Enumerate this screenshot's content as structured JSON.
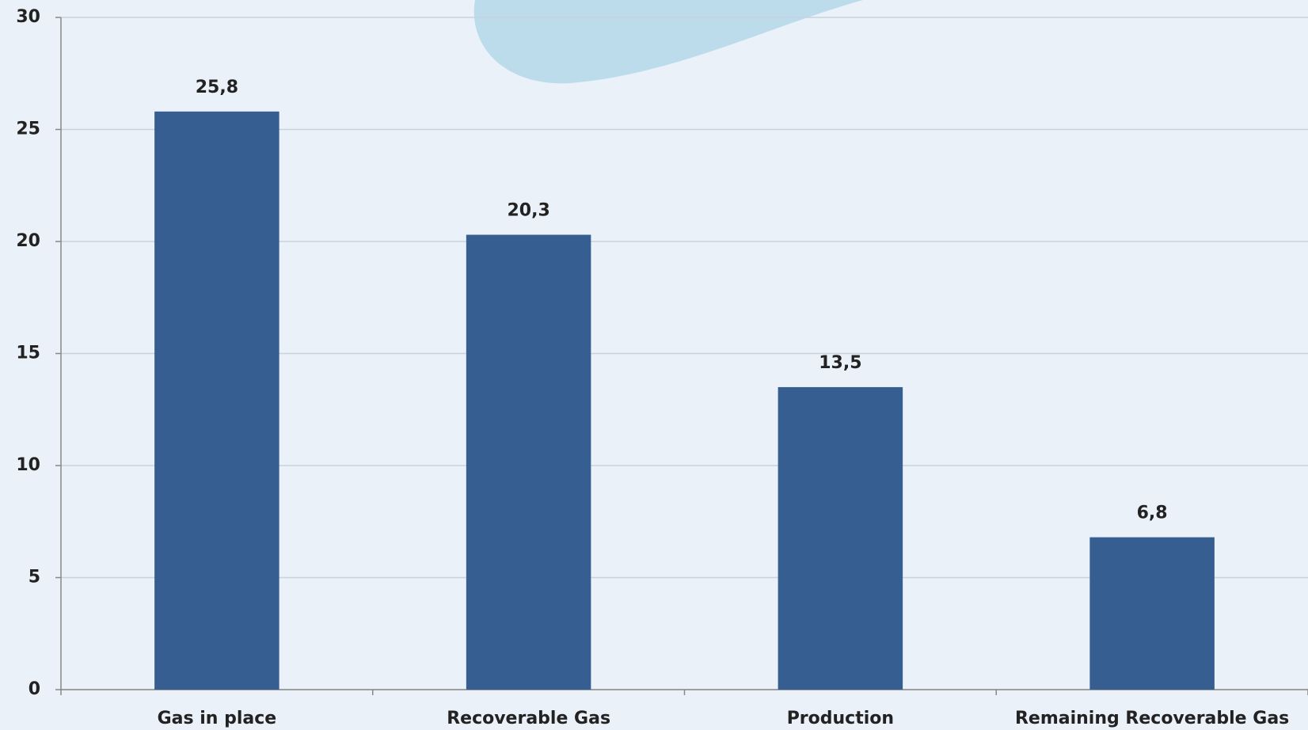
{
  "chart_data": {
    "type": "bar",
    "categories": [
      "Gas in place",
      "Recoverable Gas",
      "Production",
      "Remaining Recoverable Gas"
    ],
    "values": [
      25.8,
      20.3,
      13.5,
      6.8
    ],
    "value_labels": [
      "25,8",
      "20,3",
      "13,5",
      "6,8"
    ],
    "color": "#365e91",
    "ylim": [
      0,
      30
    ],
    "yticks": [
      0,
      5,
      10,
      15,
      20,
      25,
      30
    ],
    "grid": true
  }
}
